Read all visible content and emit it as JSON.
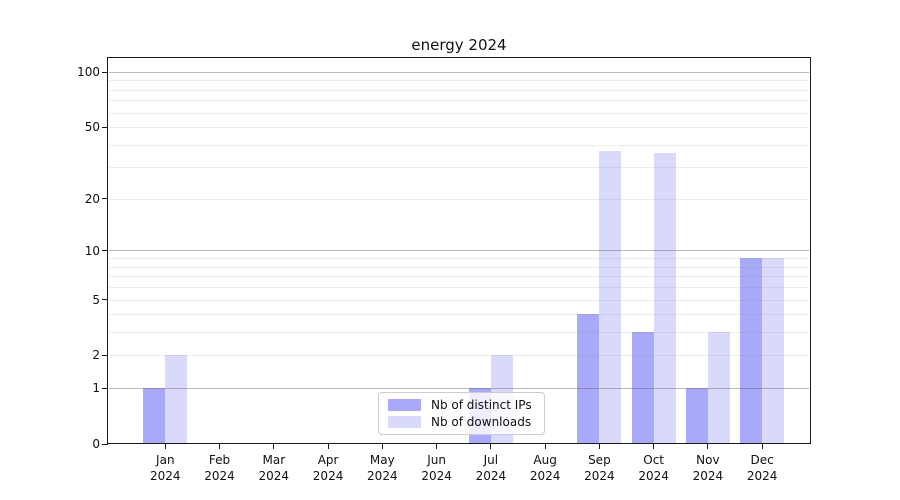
{
  "chart_data": {
    "type": "bar",
    "title": "energy 2024",
    "months": [
      "Jan",
      "Feb",
      "Mar",
      "Apr",
      "May",
      "Jun",
      "Jul",
      "Aug",
      "Sep",
      "Oct",
      "Nov",
      "Dec"
    ],
    "year": "2024",
    "categories": [
      "Jan 2024",
      "Feb 2024",
      "Mar 2024",
      "Apr 2024",
      "May 2024",
      "Jun 2024",
      "Jul 2024",
      "Aug 2024",
      "Sep 2024",
      "Oct 2024",
      "Nov 2024",
      "Dec 2024"
    ],
    "series": [
      {
        "name": "Nb of distinct IPs",
        "color": "#a9a9fa",
        "values": [
          1,
          0,
          0,
          0,
          0,
          0,
          1,
          0,
          4,
          3,
          1,
          9
        ]
      },
      {
        "name": "Nb of downloads",
        "color": "#d9d9fb",
        "values": [
          2,
          0,
          0,
          0,
          0,
          0,
          2,
          0,
          37,
          36,
          3,
          9
        ]
      }
    ],
    "yscale": "symlog",
    "ylim": [
      0,
      120
    ],
    "yticks": [
      100,
      50,
      20,
      10,
      5,
      2,
      1,
      0
    ],
    "y_major_gridlines": [
      1,
      10,
      100
    ],
    "y_minor_gridlines": [
      2,
      3,
      4,
      5,
      6,
      7,
      8,
      9,
      20,
      30,
      40,
      50,
      60,
      70,
      80,
      90
    ],
    "grid": true,
    "legend_position": "lower center",
    "xlabel": "",
    "ylabel": ""
  }
}
